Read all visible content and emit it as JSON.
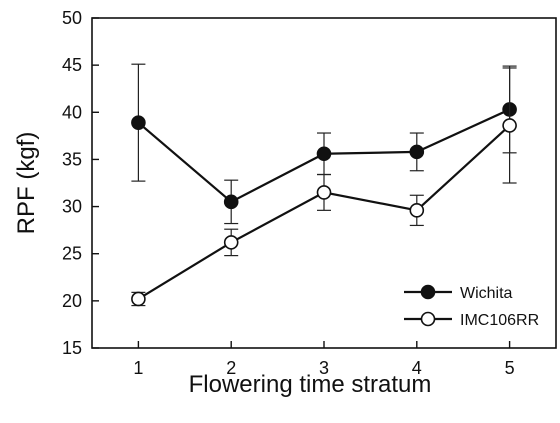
{
  "chart_data": {
    "type": "line",
    "xlabel": "Flowering time stratum",
    "ylabel": "RPF (kgf)",
    "x": [
      1,
      2,
      3,
      4,
      5
    ],
    "xlim": [
      0.5,
      5.5
    ],
    "ylim": [
      15,
      50
    ],
    "xticks": [
      1,
      2,
      3,
      4,
      5
    ],
    "yticks": [
      15,
      20,
      25,
      30,
      35,
      40,
      45,
      50
    ],
    "grid": false,
    "legend": "bottom-right",
    "series": [
      {
        "name": "Wichita",
        "marker": "filled-circle",
        "color": "#111111",
        "values": [
          38.9,
          30.5,
          35.6,
          35.8,
          40.3
        ],
        "error": [
          6.2,
          2.3,
          2.2,
          2.0,
          4.6
        ]
      },
      {
        "name": "IMC106RR",
        "marker": "open-circle",
        "color": "#111111",
        "values": [
          20.2,
          26.2,
          31.5,
          29.6,
          38.6
        ],
        "error": [
          0.7,
          1.4,
          1.9,
          1.6,
          6.1
        ]
      }
    ]
  }
}
